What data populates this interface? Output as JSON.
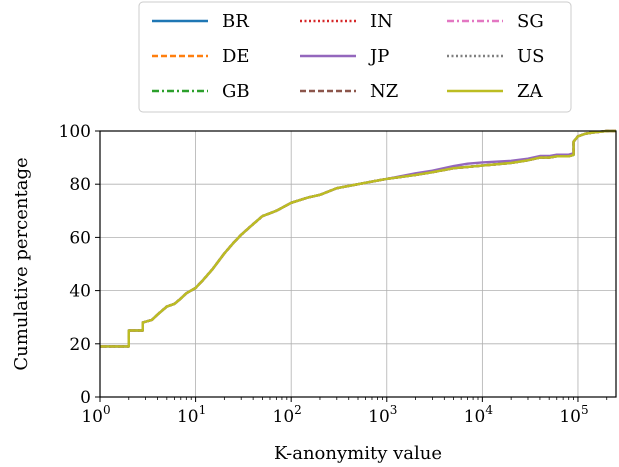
{
  "chart_data": {
    "type": "line",
    "xlabel": "K-anonymity value",
    "ylabel": "Cumulative percentage",
    "xscale": "log",
    "xlim": [
      1,
      250000
    ],
    "ylim": [
      0,
      100
    ],
    "grid": true,
    "legend_position": "top-center",
    "x_ticks": [
      {
        "value": 1,
        "base": "10",
        "exp": "0"
      },
      {
        "value": 10,
        "base": "10",
        "exp": "1"
      },
      {
        "value": 100,
        "base": "10",
        "exp": "2"
      },
      {
        "value": 1000,
        "base": "10",
        "exp": "3"
      },
      {
        "value": 10000,
        "base": "10",
        "exp": "4"
      },
      {
        "value": 100000,
        "base": "10",
        "exp": "5"
      }
    ],
    "y_ticks": [
      "0",
      "20",
      "40",
      "60",
      "80",
      "100"
    ],
    "series": [
      {
        "name": "BR",
        "color": "#1f77b4",
        "dash": "solid"
      },
      {
        "name": "DE",
        "color": "#ff7f0e",
        "dash": "dashed"
      },
      {
        "name": "GB",
        "color": "#2ca02c",
        "dash": "dashdot"
      },
      {
        "name": "IN",
        "color": "#d62728",
        "dash": "dotted"
      },
      {
        "name": "JP",
        "color": "#9467bd",
        "dash": "solid"
      },
      {
        "name": "NZ",
        "color": "#8c564b",
        "dash": "dashed"
      },
      {
        "name": "SG",
        "color": "#e377c2",
        "dash": "dashdot"
      },
      {
        "name": "US",
        "color": "#7f7f7f",
        "dash": "dotted"
      },
      {
        "name": "ZA",
        "color": "#bcbd22",
        "dash": "solid"
      }
    ],
    "curve": {
      "x": [
        1,
        2,
        2,
        2.8,
        2.8,
        3.5,
        4,
        5,
        6,
        7,
        8,
        10,
        12,
        15,
        20,
        25,
        30,
        40,
        50,
        70,
        100,
        150,
        200,
        300,
        500,
        700,
        1000,
        2000,
        3000,
        5000,
        7000,
        10000,
        20000,
        30000,
        40000,
        50000,
        60000,
        80000,
        90000,
        90000,
        100000,
        120000,
        150000,
        200000,
        250000
      ],
      "y": [
        19,
        19,
        25,
        25,
        28,
        29,
        31,
        34,
        35,
        37,
        39,
        41,
        44,
        48,
        54,
        58,
        61,
        65,
        68,
        70,
        73,
        75,
        76,
        78.5,
        80,
        81,
        82,
        83.5,
        84.5,
        86,
        86.5,
        87,
        88,
        89,
        90,
        90,
        90.5,
        90.5,
        91,
        96,
        98,
        99,
        99.5,
        100,
        100
      ],
      "offsets": {
        "JP": [
          0,
          0,
          0,
          0,
          0,
          0,
          0,
          0,
          0,
          0,
          0,
          0,
          0,
          0,
          0,
          0,
          0,
          0,
          0,
          0,
          0,
          0,
          0,
          0,
          0,
          0,
          0,
          0.6,
          0.6,
          0.8,
          1.2,
          1.2,
          0.8,
          0.6,
          0.6,
          0.6,
          0.6,
          0.6,
          0.6,
          0,
          0,
          0,
          0,
          0,
          0
        ]
      }
    }
  }
}
